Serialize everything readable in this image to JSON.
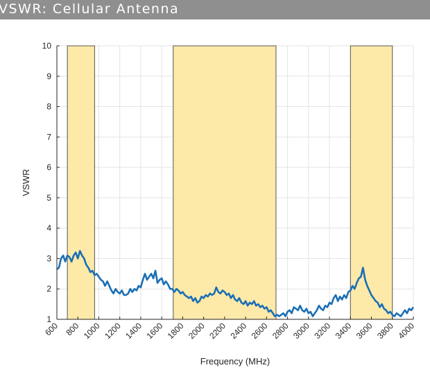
{
  "title": "VSWR: Cellular Antenna",
  "chart_data": {
    "type": "line",
    "xlabel": "Frequency (MHz)",
    "ylabel": "VSWR",
    "xlim": [
      600,
      4000
    ],
    "ylim": [
      1,
      10
    ],
    "grid": true,
    "x_ticks": [
      "600",
      "800",
      "1000",
      "1200",
      "1400",
      "1600",
      "1800",
      "2000",
      "2200",
      "2400",
      "2600",
      "2800",
      "3000",
      "3200",
      "3400",
      "3600",
      "3800",
      "4000"
    ],
    "y_ticks": [
      "1",
      "2",
      "3",
      "4",
      "5",
      "6",
      "7",
      "8",
      "9",
      "10"
    ],
    "bands": [
      {
        "start": 700,
        "end": 960
      },
      {
        "start": 1710,
        "end": 2690
      },
      {
        "start": 3400,
        "end": 3800
      }
    ],
    "band_color": "#fde9a8",
    "line_color": "#1a6fb5",
    "series": [
      {
        "x": [
          600,
          620,
          640,
          660,
          680,
          700,
          720,
          740,
          760,
          780,
          800,
          820,
          840,
          860,
          880,
          900,
          920,
          940,
          960,
          980,
          1000,
          1020,
          1040,
          1060,
          1080,
          1100,
          1120,
          1140,
          1160,
          1180,
          1200,
          1220,
          1240,
          1260,
          1280,
          1300,
          1320,
          1340,
          1360,
          1380,
          1400,
          1420,
          1440,
          1460,
          1480,
          1500,
          1520,
          1540,
          1560,
          1580,
          1600,
          1620,
          1640,
          1660,
          1680,
          1700,
          1720,
          1740,
          1760,
          1780,
          1800,
          1820,
          1840,
          1860,
          1880,
          1900,
          1920,
          1940,
          1960,
          1980,
          2000,
          2020,
          2040,
          2060,
          2080,
          2100,
          2120,
          2140,
          2160,
          2180,
          2200,
          2220,
          2240,
          2260,
          2280,
          2300,
          2320,
          2340,
          2360,
          2380,
          2400,
          2420,
          2440,
          2460,
          2480,
          2500,
          2520,
          2540,
          2560,
          2580,
          2600,
          2620,
          2640,
          2660,
          2680,
          2700,
          2720,
          2740,
          2760,
          2780,
          2800,
          2820,
          2840,
          2860,
          2880,
          2900,
          2920,
          2940,
          2960,
          2980,
          3000,
          3020,
          3040,
          3060,
          3080,
          3100,
          3120,
          3140,
          3160,
          3180,
          3200,
          3220,
          3240,
          3260,
          3280,
          3300,
          3320,
          3340,
          3360,
          3380,
          3400,
          3420,
          3440,
          3460,
          3480,
          3500,
          3520,
          3540,
          3560,
          3580,
          3600,
          3620,
          3640,
          3660,
          3680,
          3700,
          3720,
          3740,
          3760,
          3780,
          3800,
          3820,
          3840,
          3860,
          3880,
          3900,
          3920,
          3940,
          3960,
          3980,
          4000
        ],
        "values": [
          2.65,
          2.7,
          3.0,
          3.1,
          2.9,
          3.1,
          3.05,
          2.9,
          3.1,
          3.2,
          3.0,
          3.25,
          3.1,
          3.0,
          2.8,
          2.7,
          2.55,
          2.6,
          2.45,
          2.5,
          2.4,
          2.3,
          2.25,
          2.1,
          2.25,
          2.1,
          1.95,
          1.85,
          2.0,
          1.9,
          1.85,
          1.95,
          1.8,
          1.8,
          1.85,
          2.0,
          1.9,
          2.0,
          1.95,
          2.1,
          2.05,
          2.3,
          2.5,
          2.3,
          2.4,
          2.5,
          2.35,
          2.6,
          2.2,
          2.3,
          2.35,
          2.15,
          2.25,
          2.15,
          2.0,
          2.0,
          1.9,
          2.0,
          1.95,
          1.85,
          1.9,
          1.8,
          1.75,
          1.7,
          1.75,
          1.6,
          1.7,
          1.55,
          1.6,
          1.75,
          1.7,
          1.8,
          1.75,
          1.85,
          1.8,
          1.85,
          2.05,
          1.9,
          1.85,
          1.95,
          1.9,
          1.8,
          1.85,
          1.7,
          1.8,
          1.65,
          1.6,
          1.7,
          1.55,
          1.5,
          1.6,
          1.45,
          1.55,
          1.5,
          1.6,
          1.45,
          1.5,
          1.4,
          1.45,
          1.35,
          1.4,
          1.25,
          1.3,
          1.2,
          1.1,
          1.15,
          1.1,
          1.15,
          1.2,
          1.1,
          1.25,
          1.3,
          1.2,
          1.4,
          1.35,
          1.3,
          1.45,
          1.3,
          1.25,
          1.35,
          1.2,
          1.25,
          1.1,
          1.2,
          1.3,
          1.45,
          1.35,
          1.3,
          1.45,
          1.4,
          1.55,
          1.5,
          1.7,
          1.8,
          1.6,
          1.75,
          1.65,
          1.8,
          1.7,
          1.9,
          1.95,
          2.1,
          2.0,
          2.2,
          2.35,
          2.4,
          2.7,
          2.3,
          2.1,
          1.95,
          1.8,
          1.7,
          1.6,
          1.55,
          1.4,
          1.5,
          1.35,
          1.3,
          1.2,
          1.25,
          1.15,
          1.1,
          1.2,
          1.15,
          1.1,
          1.2,
          1.3,
          1.2,
          1.35,
          1.3,
          1.4
        ]
      }
    ]
  }
}
